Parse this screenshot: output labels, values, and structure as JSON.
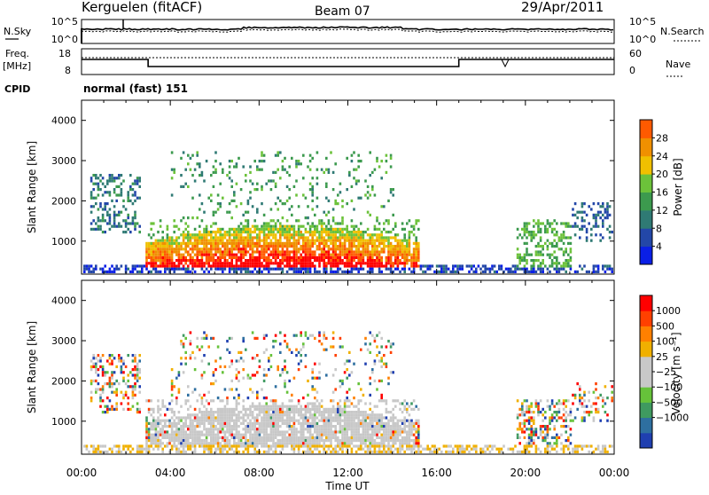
{
  "header": {
    "station": "Kerguelen (fitACF)",
    "beam": "Beam 07",
    "date": "29/Apr/2011"
  },
  "noise_panel": {
    "left_label": "N.Sky",
    "left_ticks": [
      "10^5",
      "10^0"
    ],
    "right_ticks": [
      "10^5",
      "10^0"
    ],
    "right_label": "N.Search"
  },
  "freq_panel": {
    "left_label_1": "Freq.",
    "left_label_2": "[MHz]",
    "left_ticks": [
      "18",
      "8"
    ],
    "right_ticks": [
      "60",
      "0"
    ],
    "right_label": "Nave"
  },
  "cpid": {
    "label": "CPID",
    "text": "normal (fast) 151"
  },
  "colors": {
    "power_scale": [
      "#0a1fe6",
      "#2347a8",
      "#2f7a74",
      "#3c9a4e",
      "#6cc23a",
      "#f0c000",
      "#f09000",
      "#ff5a00",
      "#ff0000"
    ],
    "velocity_scale": [
      "#1f3fb0",
      "#2e6fa0",
      "#3f9a60",
      "#66c23a",
      "#c8c8c8",
      "#c8c8c8",
      "#f0b000",
      "#ff8000",
      "#ff4000",
      "#ff0000"
    ]
  },
  "chart_data": [
    {
      "type": "heatmap",
      "title": "",
      "xlabel": "",
      "ylabel": "Slant Range [km]",
      "x_ticks": [
        "00:00",
        "04:00",
        "08:00",
        "12:00",
        "16:00",
        "20:00",
        "00:00"
      ],
      "y_ticks": [
        "1000",
        "2000",
        "3000",
        "4000"
      ],
      "ylim": [
        180,
        4500
      ],
      "colorbar_label": "Power [dB]",
      "colorbar_ticks": [
        "4",
        "8",
        "12",
        "16",
        "20",
        "24",
        "28"
      ],
      "colorbar_range": [
        0,
        32
      ]
    },
    {
      "type": "heatmap",
      "title": "",
      "xlabel": "Time UT",
      "ylabel": "Slant Range [km]",
      "x_ticks": [
        "00:00",
        "04:00",
        "08:00",
        "12:00",
        "16:00",
        "20:00",
        "00:00"
      ],
      "y_ticks": [
        "1000",
        "2000",
        "3000",
        "4000"
      ],
      "ylim": [
        180,
        4500
      ],
      "colorbar_label": "Velocity [m s⁻¹]",
      "colorbar_ticks": [
        "1000",
        "500",
        "100",
        "25",
        "−25",
        "−100",
        "−500",
        "−1000"
      ]
    }
  ]
}
